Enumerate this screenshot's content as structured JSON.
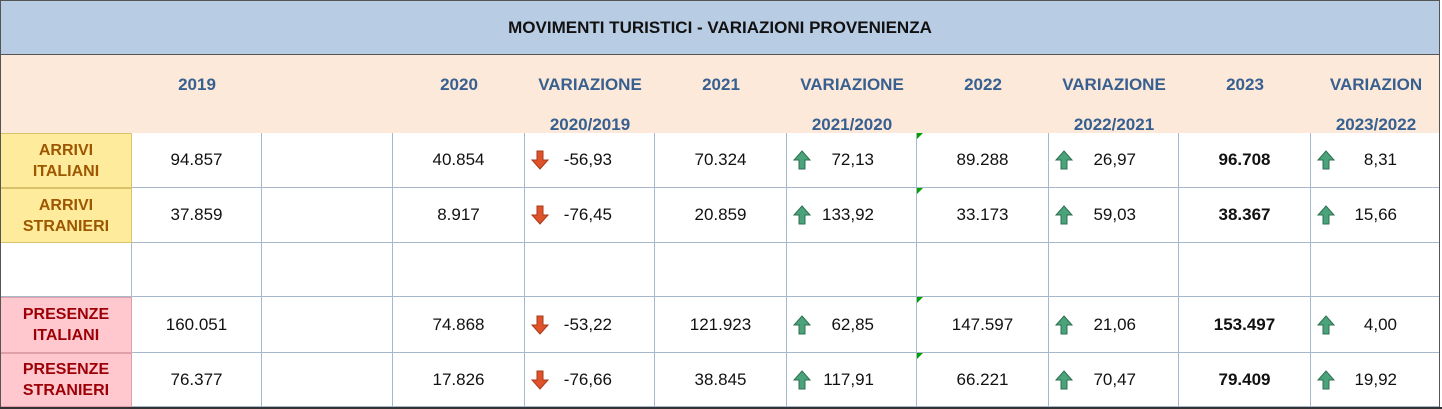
{
  "title": "MOVIMENTI TURISTICI - VARIAZIONI PROVENIENZA",
  "headers": {
    "y2019": "2019",
    "y2020": "2020",
    "var1_top": "VARIAZIONE",
    "var1_bottom": "2020/2019",
    "y2021": "2021",
    "var2_top": "VARIAZIONE",
    "var2_bottom": "2021/2020",
    "y2022": "2022",
    "var3_top": "VARIAZIONE",
    "var3_bottom": "2022/2021",
    "y2023": "2023",
    "var4_top": "VARIAZION",
    "var4_bottom": "2023/2022"
  },
  "rows": [
    {
      "label1": "ARRIVI",
      "label2": "ITALIANI",
      "v2019": "94.857",
      "v2020": "40.854",
      "var1": "-56,93",
      "v2021": "70.324",
      "var2": "72,13",
      "v2022": "89.288",
      "var3": "26,97",
      "v2023": "96.708",
      "var4": "8,31"
    },
    {
      "label1": "ARRIVI",
      "label2": "STRANIERI",
      "v2019": "37.859",
      "v2020": "8.917",
      "var1": "-76,45",
      "v2021": "20.859",
      "var2": "133,92",
      "v2022": "33.173",
      "var3": "59,03",
      "v2023": "38.367",
      "var4": "15,66"
    },
    {
      "label1": "PRESENZE",
      "label2": "ITALIANI",
      "v2019": "160.051",
      "v2020": "74.868",
      "var1": "-53,22",
      "v2021": "121.923",
      "var2": "62,85",
      "v2022": "147.597",
      "var3": "21,06",
      "v2023": "153.497",
      "var4": "4,00"
    },
    {
      "label1": "PRESENZE",
      "label2": "STRANIERI",
      "v2019": "76.377",
      "v2020": "17.826",
      "var1": "-76,66",
      "v2021": "38.845",
      "var2": "117,91",
      "v2022": "66.221",
      "var3": "70,47",
      "v2023": "79.409",
      "var4": "19,92"
    }
  ],
  "colors": {
    "title_bg": "#b8cce4",
    "header_bg": "#fde9d9",
    "header_text": "#376091",
    "arrivi_bg": "#ffeb9c",
    "arrivi_text": "#9c5700",
    "presenze_bg": "#ffc7ce",
    "presenze_text": "#9c0006",
    "arrow_down": "#e0522a",
    "arrow_up": "#4aa37a"
  },
  "icons": {
    "decrease": "arrow-down-icon",
    "increase": "arrow-up-icon"
  }
}
